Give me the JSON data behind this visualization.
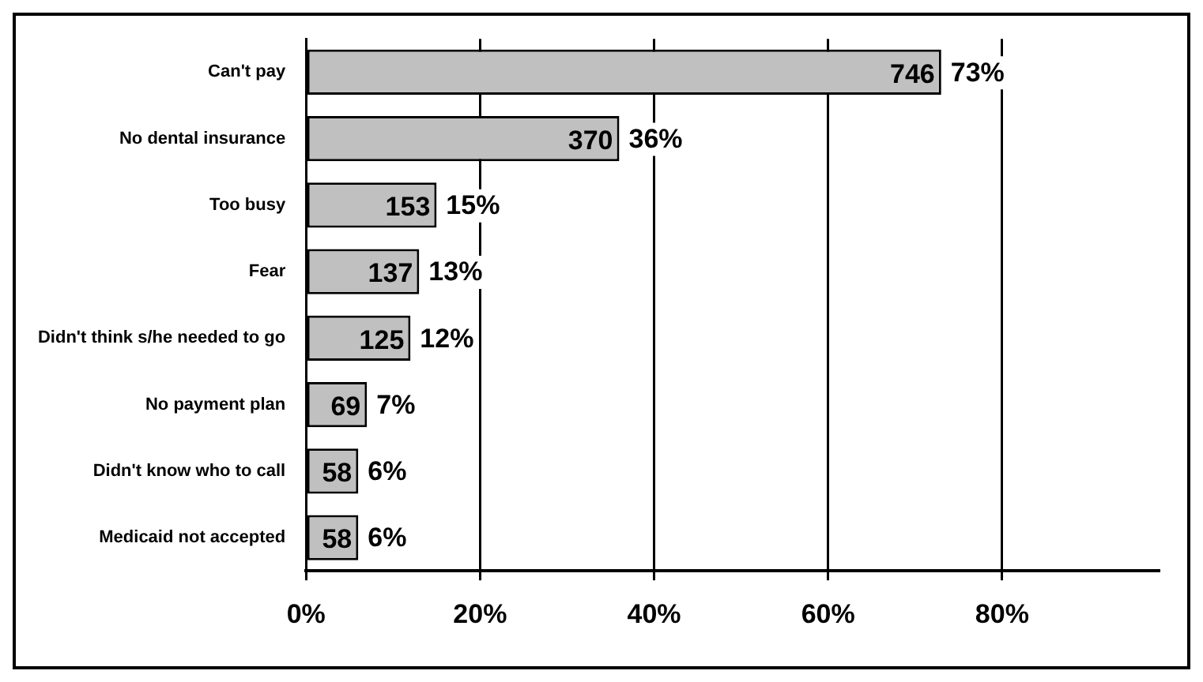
{
  "chart_data": {
    "type": "bar",
    "orientation": "horizontal",
    "categories": [
      "Can't pay",
      "No dental insurance",
      "Too busy",
      "Fear",
      "Didn't think s/he needed to go",
      "No payment plan",
      "Didn't know who to call",
      "Medicaid not accepted"
    ],
    "values": [
      73,
      36,
      15,
      13,
      12,
      7,
      6,
      6
    ],
    "value_labels": [
      "73%",
      "36%",
      "15%",
      "13%",
      "12%",
      "7%",
      "6%",
      "6%"
    ],
    "color": "#c0c0c0",
    "xlim": [
      0,
      98
    ],
    "xticks": [
      {
        "value": 0,
        "label": "0%"
      },
      {
        "value": 20,
        "label": "20%"
      },
      {
        "value": 40,
        "label": "40%"
      },
      {
        "value": 60,
        "label": "60%"
      },
      {
        "value": 80,
        "label": "80%"
      }
    ],
    "grid": "x",
    "annotations": [
      {
        "text": "746",
        "x": 73,
        "y": "Can't pay"
      },
      {
        "text": "370",
        "x": 36,
        "y": "No dental insurance"
      },
      {
        "text": "153",
        "x": 15,
        "y": "Too busy"
      },
      {
        "text": "137",
        "x": 13,
        "y": "Fear"
      },
      {
        "text": "125",
        "x": 12,
        "y": "Didn't think s/he needed to go"
      },
      {
        "text": "69",
        "x": 7,
        "y": "No payment plan"
      },
      {
        "text": "58",
        "x": 6,
        "y": "Didn't know who to call"
      },
      {
        "text": "58",
        "x": 6,
        "y": "Medicaid not accepted"
      }
    ]
  }
}
